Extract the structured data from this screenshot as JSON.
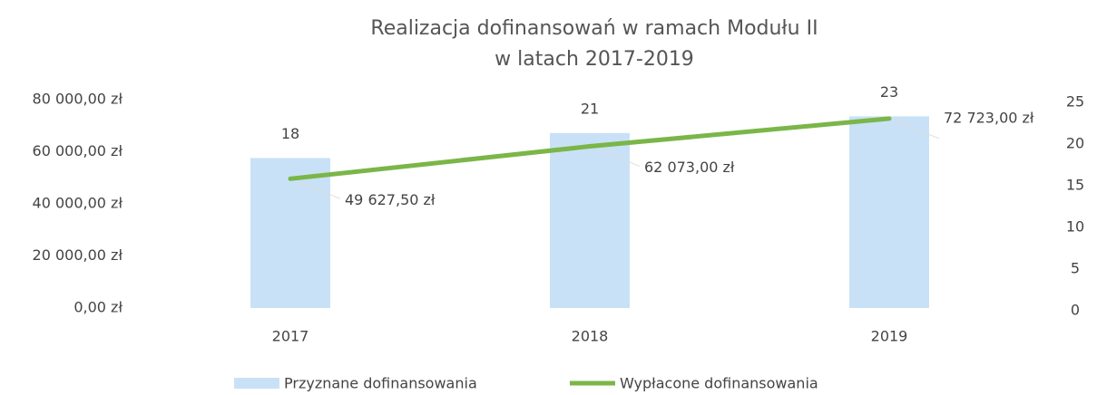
{
  "chart_data": {
    "type": "combo",
    "title": [
      "Realizacja dofinansowań w ramach Modułu II",
      "w latach 2017-2019"
    ],
    "categories": [
      "2017",
      "2018",
      "2019"
    ],
    "series": [
      {
        "name": "Przyznane dofinansowania",
        "type": "bar",
        "axis": "y2",
        "color": "#c9e1f6",
        "values": [
          18,
          21,
          23
        ]
      },
      {
        "name": "Wypłacone dofinansowania",
        "type": "line",
        "axis": "y",
        "color": "#7ab648",
        "values": [
          49627.5,
          62073,
          72723
        ],
        "value_labels": [
          "49 627,50 zł",
          "62 073,00 zł",
          "72 723,00 zł"
        ]
      }
    ],
    "ylim": [
      0,
      80000
    ],
    "yticks": [
      {
        "value": 0,
        "label": "0,00 zł"
      },
      {
        "value": 20000,
        "label": "20 000,00 zł"
      },
      {
        "value": 40000,
        "label": "40 000,00 zł"
      },
      {
        "value": 60000,
        "label": "60 000,00 zł"
      },
      {
        "value": 80000,
        "label": "80 000,00 zł"
      }
    ],
    "y2lim": [
      0,
      25
    ],
    "y2ticks": [
      0,
      5,
      10,
      15,
      20,
      25
    ],
    "grid": false,
    "legend": "bottom"
  }
}
